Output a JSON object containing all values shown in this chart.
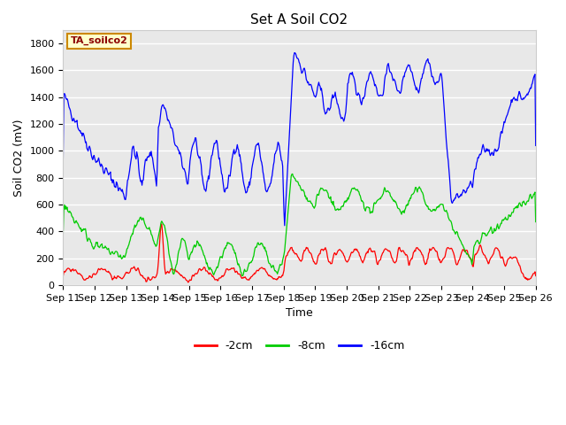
{
  "title": "Set A Soil CO2",
  "ylabel": "Soil CO2 (mV)",
  "xlabel": "Time",
  "legend_label": "TA_soilco2",
  "series_labels": [
    "-2cm",
    "-8cm",
    "-16cm"
  ],
  "series_colors": [
    "#ff0000",
    "#00cc00",
    "#0000ff"
  ],
  "ylim": [
    0,
    1900
  ],
  "yticks": [
    0,
    200,
    400,
    600,
    800,
    1000,
    1200,
    1400,
    1600,
    1800
  ],
  "background_color": "#ffffff",
  "plot_bg_color": "#e8e8e8",
  "grid_color": "#ffffff",
  "title_fontsize": 11,
  "axis_fontsize": 9,
  "tick_fontsize": 8,
  "legend_fontsize": 9
}
